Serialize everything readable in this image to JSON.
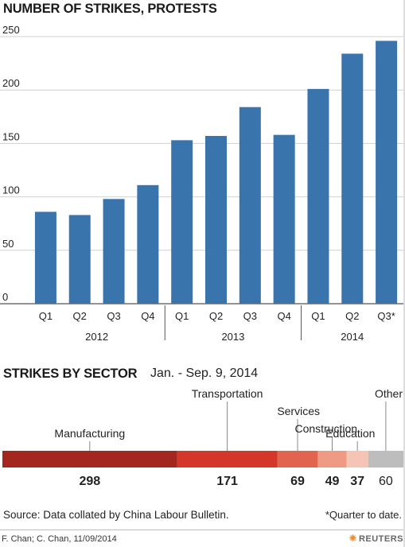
{
  "chart_title": "NUMBER OF STRIKES, PROTESTS",
  "chart_data": [
    {
      "type": "bar",
      "title": "NUMBER OF STRIKES, PROTESTS",
      "categories": [
        "Q1",
        "Q2",
        "Q3",
        "Q4",
        "Q1",
        "Q2",
        "Q3",
        "Q4",
        "Q1",
        "Q2",
        "Q3*"
      ],
      "years": [
        {
          "label": "2012",
          "count": 4
        },
        {
          "label": "2013",
          "count": 4
        },
        {
          "label": "2014",
          "count": 3
        }
      ],
      "values": [
        86,
        83,
        98,
        111,
        153,
        157,
        184,
        158,
        201,
        234,
        246
      ],
      "ylim": [
        0,
        250
      ],
      "yticks": [
        "0",
        "50",
        "100",
        "150",
        "200",
        "250"
      ],
      "bar_color": "#3a74ad",
      "grid": true
    },
    {
      "type": "bar",
      "subtype": "stacked-horizontal",
      "title": "STRIKES BY SECTOR",
      "subtitle": "Jan. - Sep. 9, 2014",
      "segments": [
        {
          "label": "Manufacturing",
          "value": 298,
          "color": "#a3261f"
        },
        {
          "label": "Transportation",
          "value": 171,
          "color": "#d4362a"
        },
        {
          "label": "Services",
          "value": 69,
          "color": "#e06450"
        },
        {
          "label": "Construction",
          "value": 49,
          "color": "#ef9a83"
        },
        {
          "label": "Education",
          "value": 37,
          "color": "#f6c4b4"
        },
        {
          "label": "Other",
          "value": 60,
          "color": "#bdbdbd"
        }
      ]
    }
  ],
  "source": "Source: Data collated by China Labour Bulletin.",
  "footnote": "*Quarter to date.",
  "credit": "F. Chan; C. Chan, 11/09/2014",
  "brand": "REUTERS"
}
